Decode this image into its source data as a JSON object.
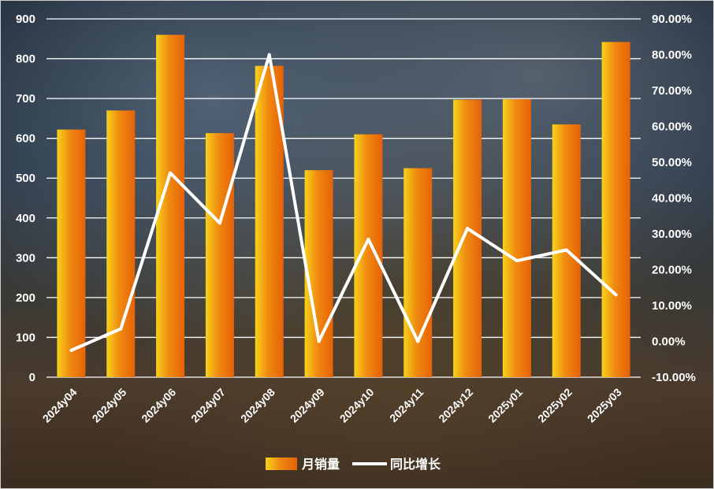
{
  "chart_data": {
    "type": "bar",
    "categories": [
      "2024y04",
      "2024y05",
      "2024y06",
      "2024y07",
      "2024y08",
      "2024y09",
      "2024y10",
      "2024y11",
      "2024y12",
      "2025y01",
      "2025y02",
      "2025y03"
    ],
    "series": [
      {
        "name": "月销量",
        "type": "bar",
        "axis": "left",
        "values": [
          622,
          670,
          860,
          613,
          782,
          520,
          610,
          525,
          697,
          698,
          635,
          842
        ]
      },
      {
        "name": "同比增长",
        "type": "line",
        "axis": "right",
        "values": [
          -2.5,
          3.5,
          47.0,
          33.0,
          80.0,
          0.0,
          28.5,
          0.0,
          31.5,
          22.5,
          25.5,
          13.0
        ]
      }
    ],
    "ylim_left": [
      0,
      900
    ],
    "yticks_left": [
      "0",
      "100",
      "200",
      "300",
      "400",
      "500",
      "600",
      "700",
      "800",
      "900"
    ],
    "ylim_right": [
      -10,
      90
    ],
    "yticks_right": [
      "-10.00%",
      "0.00%",
      "10.00%",
      "20.00%",
      "30.00%",
      "40.00%",
      "50.00%",
      "60.00%",
      "70.00%",
      "80.00%",
      "90.00%"
    ],
    "grid": true,
    "legend": "bottom-center",
    "colors": {
      "bar_light": "#f7d21a",
      "bar_dark": "#e86a0c",
      "line": "#ffffff",
      "grid": "#ffffff",
      "text": "#ffffff"
    }
  }
}
